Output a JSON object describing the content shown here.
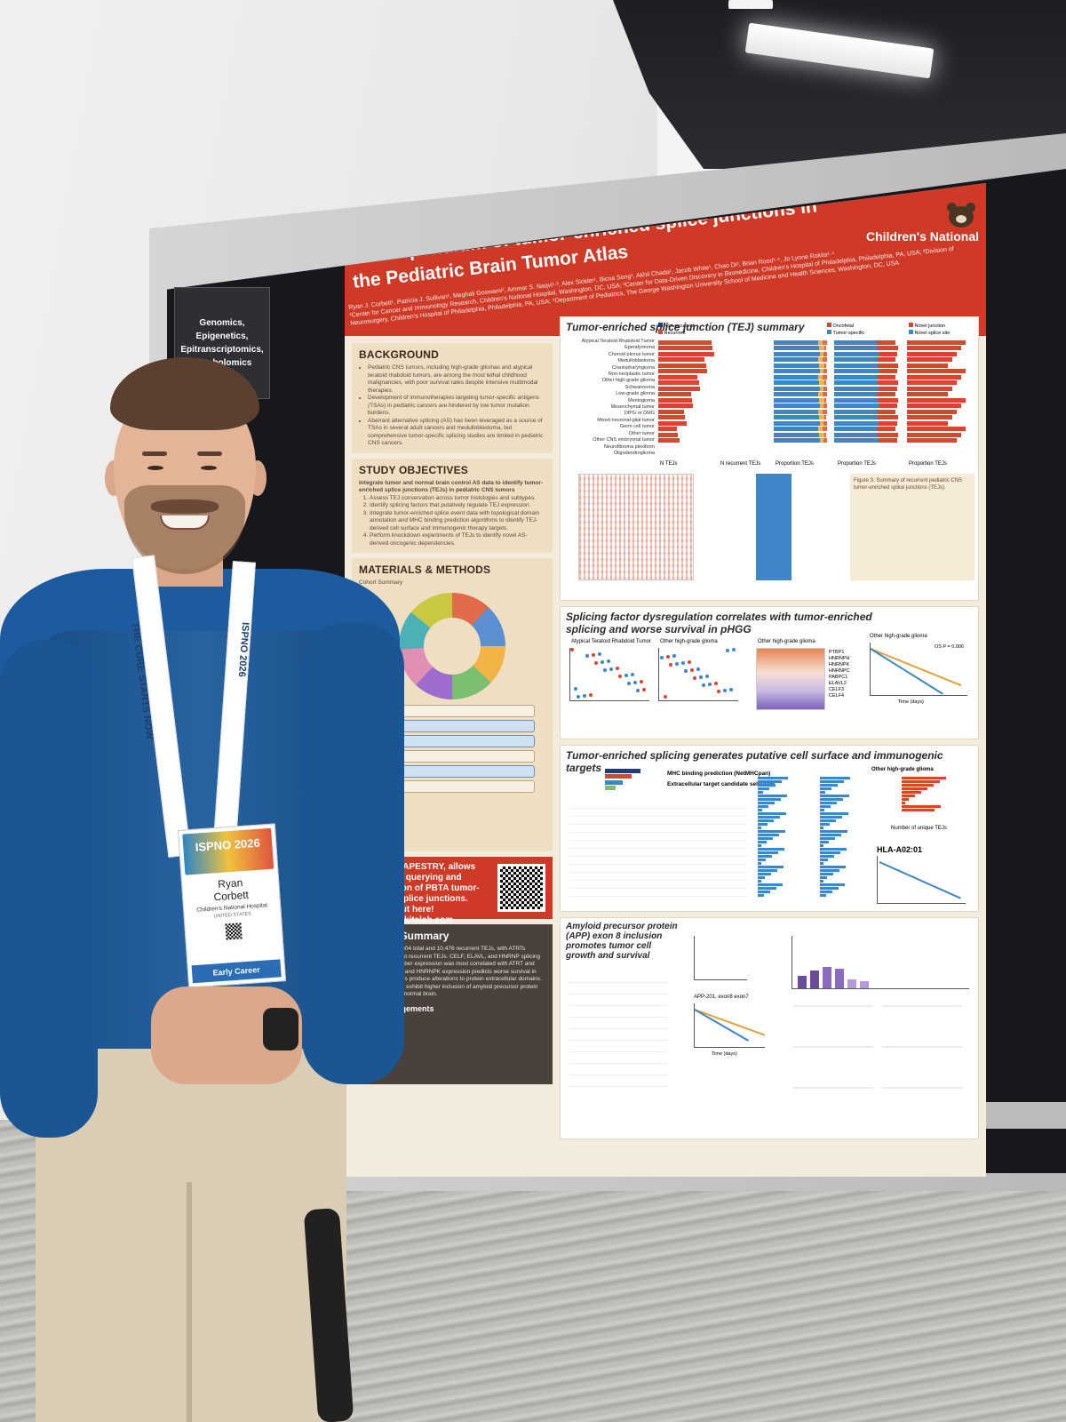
{
  "board": {
    "topic_card": "Genomics, Epigenetics, Epitranscriptomics, Metabolomics"
  },
  "poster": {
    "title_line_1": "A compendium of tumor-enriched splice junctions in",
    "title_line_2": "the Pediatric Brain Tumor Atlas",
    "authors": "Ryan J. Corbett¹, Patricia J. Sullivan¹, Meghali Goswami¹, Ammar S. Naqvi¹·², Alex Sickler¹, Bicna Song¹, Akhil Chada¹, Jacob White¹, Chao Di¹, Brian Rood¹·⁴, Jo Lynne Rokita¹·⁴",
    "affiliations": "¹Center for Cancer and Immunology Research, Children's National Hospital, Washington, DC, USA; ²Center for Data-Driven Discovery in Biomedicine, Children's Hospital of Philadelphia, Philadelphia, PA, USA; ³Division of Neurosurgery, Children's Hospital of Philadelphia, Philadelphia, PA, USA; ⁴Department of Pediatrics, The George Washington University School of Medicine and Health Sciences, Washington, DC, USA",
    "logo_text": "Children's National",
    "background": {
      "heading": "BACKGROUND",
      "bullets": [
        "Pediatric CNS tumors, including high-grade gliomas and atypical teratoid rhabdoid tumors, are among the most lethal childhood malignancies, with poor survival rates despite intensive multimodal therapies.",
        "Development of immunotherapies targeting tumor-specific antigens (TSAs) in pediatric cancers are hindered by low tumor mutation burdens.",
        "Aberrant alternative splicing (AS) has been leveraged as a source of TSAs in several adult cancers and medulloblastoma, but comprehensive tumor-specific splicing studies are limited in pediatric CNS cancers."
      ]
    },
    "objectives": {
      "heading": "STUDY OBJECTIVES",
      "intro": "Integrate tumor and normal brain control AS data to identify tumor-enriched splice junctions (TEJs) in pediatric CNS tumors",
      "items": [
        "Assess TEJ conservation across tumor histologies and subtypes.",
        "Identify splicing factors that putatively regulate TEJ expression.",
        "Integrate tumor-enriched splice event data with topological domain annotation and MHC binding prediction algorithms to identify TEJ-derived cell surface and immunogenic therapy targets.",
        "Perform knockdown experiments of TEJs to identify novel AS-derived oncogenic dependencies."
      ]
    },
    "methods": {
      "heading": "MATERIALS & METHODS",
      "subheading": "Cohort Summary"
    },
    "tapestry": {
      "text": "Our app, TAPESTRY, allows interactive querying and visualization of PBTA tumor-enriched splice junctions. Check it out here!",
      "url": "tapestry.rokitalab.com"
    },
    "results": {
      "heading": "Results Summary",
      "text": "We identified 58,304 total and 10,476 recurrent TEJs, with ATRTs harboring the most recurrent TEJs. CELF, ELAVL, and HNRNP splicing factor family member expression was most correlated with ATRT and HGG TEJ burden and HNRNPK expression predicts worse survival in pHGG. 1,006 TEJs produce alterations to protein extracellular domains. ATRTs and HGGs exhibit higher inclusion of amyloid precursor protein (APP) exon 8 vs. normal brain.",
      "acknowledgements": "Acknowledgements"
    },
    "fig3": {
      "title": "Tumor-enriched splice junction (TEJ) summary",
      "legend_a": [
        "Non-recurrent",
        "Recurrent"
      ],
      "legend_d": [
        "Oncofetal",
        "Tumor-specific"
      ],
      "legend_e": [
        "Novel junction",
        "Novel splice site"
      ],
      "histologies": [
        "Atypical Teratoid Rhabdoid Tumor",
        "Ependymoma",
        "Choroid plexus tumor",
        "Medulloblastoma",
        "Craniopharyngioma",
        "Non-neoplastic tumor",
        "Other high-grade glioma",
        "Schwannoma",
        "Low-grade glioma",
        "Meningioma",
        "Mesenchymal tumor",
        "DIPG or DMG",
        "Mixed neuronal-glial tumor",
        "Germ cell tumor",
        "Other tumor",
        "Other CNS embryonal tumor",
        "Neurofibroma plexiform",
        "Oligodendroglioma"
      ],
      "xlabel_a": "N TEJs",
      "xlabel_b": "N recurrent TEJs",
      "xlabel_c": "Proportion TEJs",
      "xlabel_d": "Proportion TEJs",
      "xlabel_e": "Proportion TEJs",
      "caption": "Figure 3. Summary of recurrent pediatric CNS tumor-enriched splice junctions (TEJs)."
    },
    "fig4": {
      "title_1": "Splicing factor dysregulation correlates with tumor-enriched",
      "title_2": "splicing and worse survival in pHGG",
      "panel_a1": "Atypical Teratoid Rhabdoid Tumor",
      "panel_a2": "Other high-grade glioma",
      "panel_b": "Other high-grade glioma",
      "panel_c": "Other high-grade glioma",
      "pvalue": "OS P = 0.006",
      "xlabel": "Time (days)",
      "genes": [
        "PTBP1",
        "HNRNPH",
        "HNRNPK",
        "HNRNPC",
        "PABPC1",
        "ELAVL2",
        "CELF3",
        "CELF4"
      ]
    },
    "fig5": {
      "title": "Tumor-enriched splicing generates putative cell surface and immunogenic targets",
      "box_1": "MHC binding prediction (NetMHCpan)",
      "box_2": "Extracellular target candidate selection",
      "panel_d": "Other high-grade glioma",
      "hla_label": "HLA-A02:01",
      "xlabel_d": "Number of unique TEJs"
    },
    "fig6": {
      "title": "Amyloid precursor protein (APP) exon 8 inclusion promotes tumor cell growth and survival",
      "panel_c": "APP-201, exon8 exon7",
      "xlabel": "Time (days)"
    }
  },
  "badge": {
    "lanyard_text": "THE CURE STARTS NOW",
    "lanyard_brand": "ISPNO 2026",
    "event": "ISPNO 2026",
    "first_name": "Ryan",
    "last_name": "Corbett",
    "organization": "Children's National Hospital",
    "country": "UNITED STATES",
    "category": "Early Career"
  }
}
